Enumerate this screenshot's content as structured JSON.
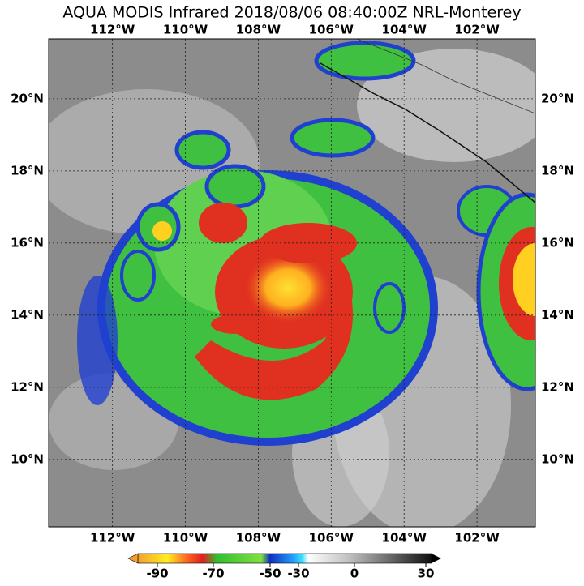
{
  "title": "AQUA MODIS Infrared 2018/08/06 08:40:00Z NRL-Monterey",
  "lon_range": [
    -113.75,
    -100.4
  ],
  "lat_range": [
    8.13,
    21.66
  ],
  "lon_ticks": [
    {
      "value": -112,
      "label": "112°W"
    },
    {
      "value": -110,
      "label": "110°W"
    },
    {
      "value": -108,
      "label": "108°W"
    },
    {
      "value": -106,
      "label": "106°W"
    },
    {
      "value": -104,
      "label": "104°W"
    },
    {
      "value": -102,
      "label": "102°W"
    }
  ],
  "lat_ticks": [
    {
      "value": 20,
      "label": "20°N"
    },
    {
      "value": 18,
      "label": "18°N"
    },
    {
      "value": 16,
      "label": "16°N"
    },
    {
      "value": 14,
      "label": "14°N"
    },
    {
      "value": 12,
      "label": "12°N"
    },
    {
      "value": 10,
      "label": "10°N"
    }
  ],
  "colorbar_ticks": [
    -90,
    -70,
    -50,
    -30,
    0,
    30
  ]
}
